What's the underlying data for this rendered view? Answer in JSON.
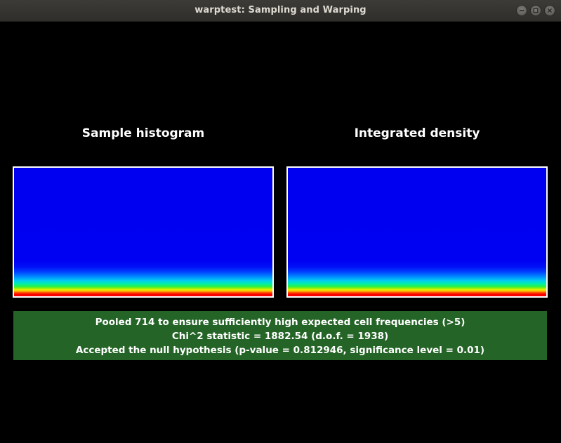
{
  "window": {
    "title": "warptest: Sampling and Warping"
  },
  "panels": {
    "left_title": "Sample histogram",
    "right_title": "Integrated density"
  },
  "status": {
    "background_color": "#256427",
    "lines": [
      "Pooled 714 to ensure sufficiently high expected cell frequencies (>5)",
      "Chi^2 statistic = 1882.54 (d.o.f. = 1938)",
      "Accepted the null hypothesis (p-value = 0.812946, significance level = 0.01)"
    ]
  },
  "colormap": {
    "low": "#0000f0",
    "high": "#ff0000"
  }
}
